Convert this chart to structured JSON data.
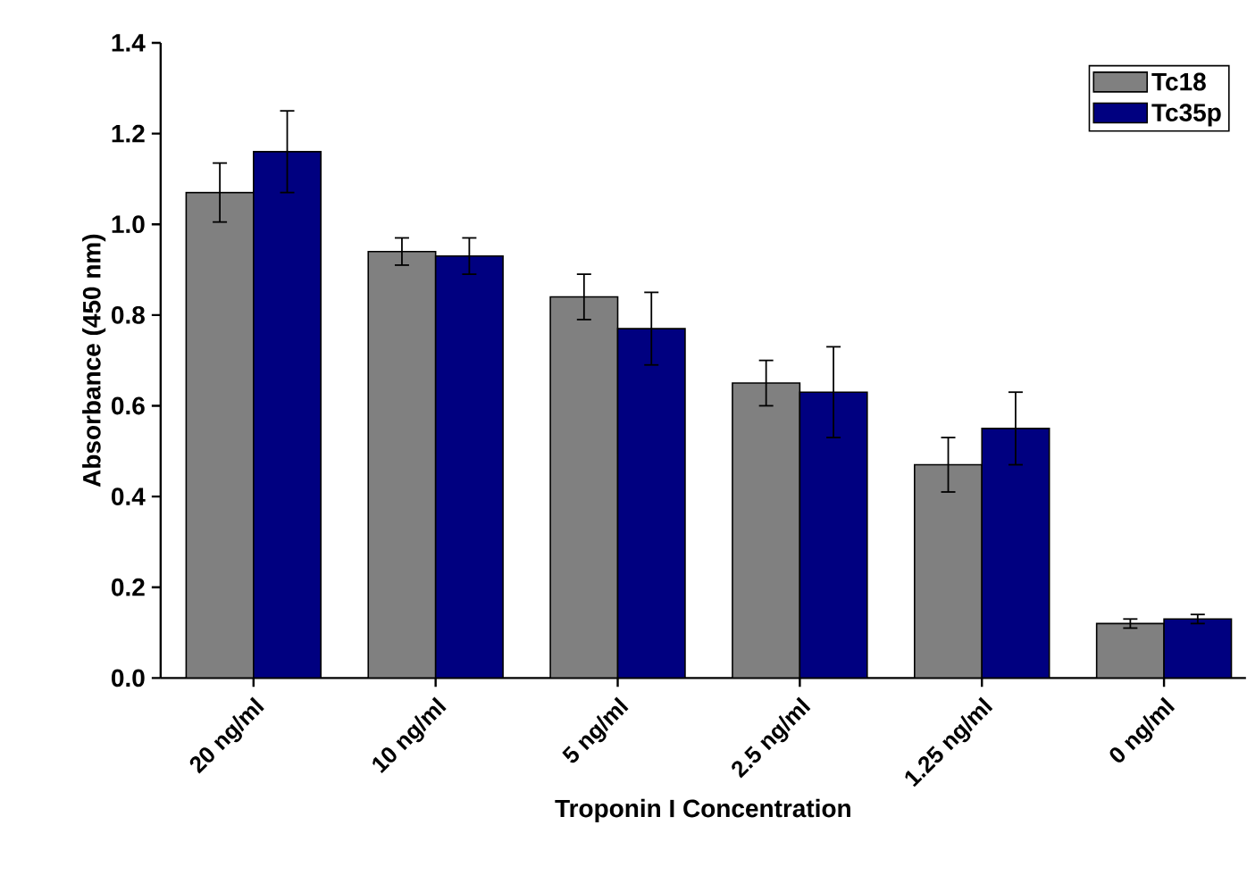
{
  "chart_data": {
    "type": "bar",
    "xlabel": "Troponin I Concentration",
    "ylabel": "Absorbance (450 nm)",
    "categories": [
      "20 ng/ml",
      "10 ng/ml",
      "5 ng/ml",
      "2.5 ng/ml",
      "1.25 ng/ml",
      "0 ng/ml"
    ],
    "series": [
      {
        "name": "Tc18",
        "color": "#808080",
        "values": [
          1.07,
          0.94,
          0.84,
          0.65,
          0.47,
          0.12
        ],
        "errors": [
          0.065,
          0.03,
          0.05,
          0.05,
          0.06,
          0.01
        ]
      },
      {
        "name": "Tc35p",
        "color": "#000080",
        "values": [
          1.16,
          0.93,
          0.77,
          0.63,
          0.55,
          0.13
        ],
        "errors": [
          0.09,
          0.04,
          0.08,
          0.1,
          0.08,
          0.01
        ]
      }
    ],
    "ylim": [
      0,
      1.4
    ],
    "yticks": [
      {
        "value": 0,
        "label": "0.0"
      },
      0.2,
      0.4,
      0.6,
      0.8,
      {
        "value": 1,
        "label": "1.0"
      },
      1.2,
      1.4
    ],
    "legend": "top right"
  }
}
